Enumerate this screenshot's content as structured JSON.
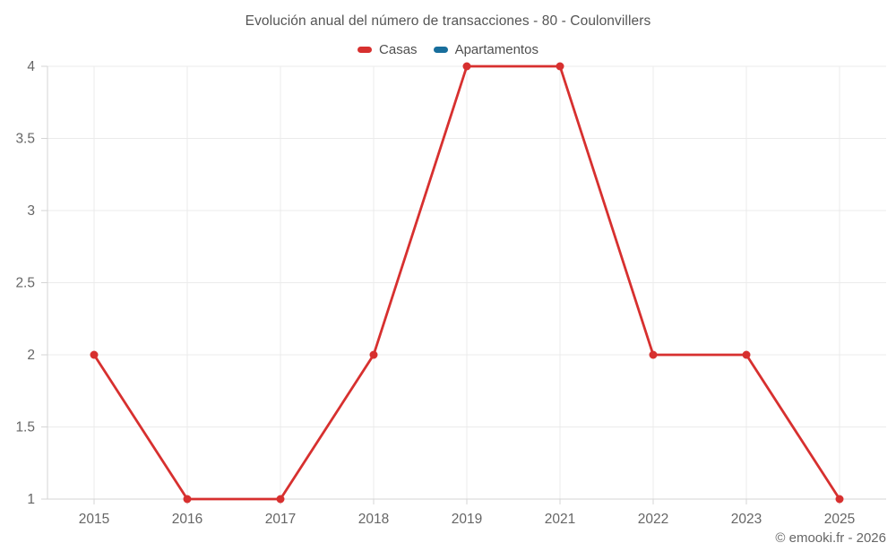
{
  "title": "Evolución anual del número de transacciones - 80 - Coulonvillers",
  "legend": [
    {
      "label": "Casas",
      "color": "#d7302f"
    },
    {
      "label": "Apartamentos",
      "color": "#186e9c"
    }
  ],
  "footer": {
    "copyright": "© emooki.fr - 2026"
  },
  "chart_data": {
    "type": "line",
    "categories": [
      "2015",
      "2016",
      "2017",
      "2018",
      "2019",
      "2021",
      "2022",
      "2023",
      "2025"
    ],
    "series": [
      {
        "name": "Casas",
        "color": "#d7302f",
        "values": [
          2,
          1,
          1,
          2,
          4,
          4,
          2,
          2,
          1
        ]
      },
      {
        "name": "Apartamentos",
        "color": "#186e9c",
        "values": []
      }
    ],
    "yticks": [
      4,
      3.5,
      3,
      2.5,
      2,
      1.5,
      1
    ],
    "ylim": [
      1,
      4
    ],
    "grid": true,
    "legend_position": "top",
    "title": "Evolución anual del número de transacciones - 80 - Coulonvillers",
    "xlabel": "",
    "ylabel": ""
  }
}
